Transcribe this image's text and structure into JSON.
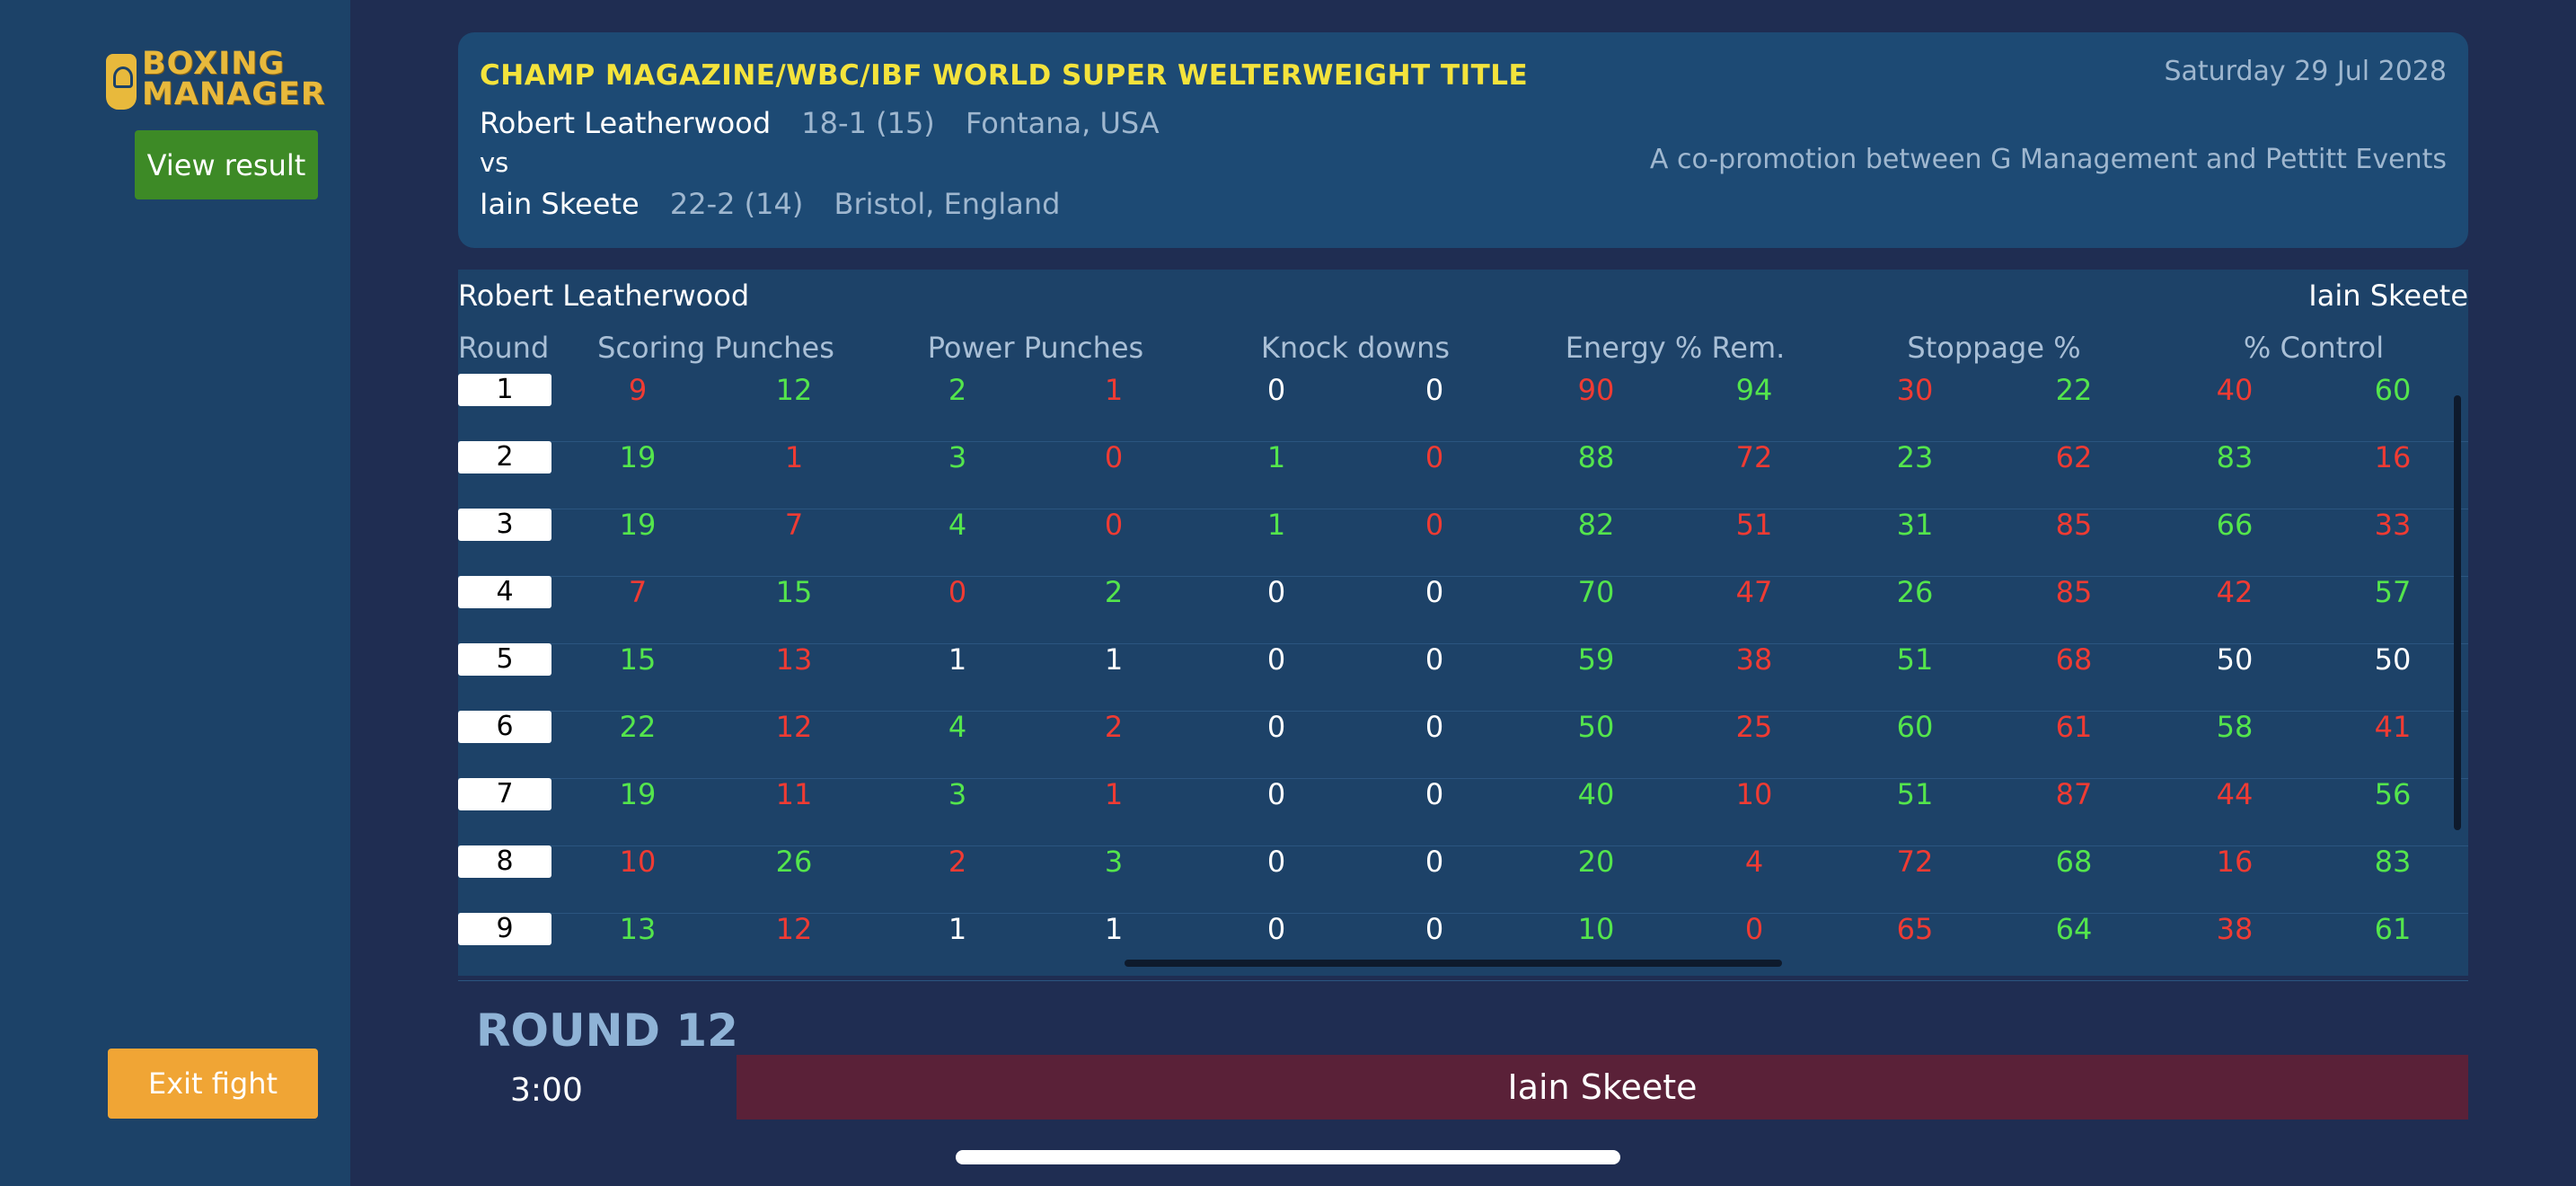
{
  "sidebar": {
    "logo_line1": "BOXING",
    "logo_line2": "MANAGER",
    "view_result_label": "View result",
    "exit_fight_label": "Exit fight"
  },
  "header": {
    "title": "CHAMP MAGAZINE/WBC/IBF WORLD SUPER WELTERWEIGHT TITLE",
    "fighter1": {
      "name": "Robert Leatherwood",
      "record": "18-1 (15)",
      "location": "Fontana, USA"
    },
    "vs": "vs",
    "fighter2": {
      "name": "Iain Skeete",
      "record": "22-2 (14)",
      "location": "Bristol, England"
    },
    "date": "Saturday 29 Jul 2028",
    "copromotion": "A co-promotion between G Management and Pettitt Events"
  },
  "table": {
    "left_name": "Robert Leatherwood",
    "right_name": "Iain Skeete",
    "headers": [
      "Round",
      "Scoring Punches",
      "Power Punches",
      "Knock downs",
      "Energy % Rem.",
      "Stoppage %",
      "% Control"
    ],
    "rows": [
      {
        "round": "1",
        "values": [
          "9",
          "12",
          "2",
          "1",
          "0",
          "0",
          "90",
          "94",
          "30",
          "22",
          "40",
          "60"
        ],
        "colors": [
          "r",
          "g",
          "g",
          "r",
          "w",
          "w",
          "r",
          "g",
          "r",
          "g",
          "r",
          "g"
        ]
      },
      {
        "round": "2",
        "values": [
          "19",
          "1",
          "3",
          "0",
          "1",
          "0",
          "88",
          "72",
          "23",
          "62",
          "83",
          "16"
        ],
        "colors": [
          "g",
          "r",
          "g",
          "r",
          "g",
          "r",
          "g",
          "r",
          "g",
          "r",
          "g",
          "r"
        ]
      },
      {
        "round": "3",
        "values": [
          "19",
          "7",
          "4",
          "0",
          "1",
          "0",
          "82",
          "51",
          "31",
          "85",
          "66",
          "33"
        ],
        "colors": [
          "g",
          "r",
          "g",
          "r",
          "g",
          "r",
          "g",
          "r",
          "g",
          "r",
          "g",
          "r"
        ]
      },
      {
        "round": "4",
        "values": [
          "7",
          "15",
          "0",
          "2",
          "0",
          "0",
          "70",
          "47",
          "26",
          "85",
          "42",
          "57"
        ],
        "colors": [
          "r",
          "g",
          "r",
          "g",
          "w",
          "w",
          "g",
          "r",
          "g",
          "r",
          "r",
          "g"
        ]
      },
      {
        "round": "5",
        "values": [
          "15",
          "13",
          "1",
          "1",
          "0",
          "0",
          "59",
          "38",
          "51",
          "68",
          "50",
          "50"
        ],
        "colors": [
          "g",
          "r",
          "w",
          "w",
          "w",
          "w",
          "g",
          "r",
          "g",
          "r",
          "w",
          "w"
        ]
      },
      {
        "round": "6",
        "values": [
          "22",
          "12",
          "4",
          "2",
          "0",
          "0",
          "50",
          "25",
          "60",
          "61",
          "58",
          "41"
        ],
        "colors": [
          "g",
          "r",
          "g",
          "r",
          "w",
          "w",
          "g",
          "r",
          "g",
          "r",
          "g",
          "r"
        ]
      },
      {
        "round": "7",
        "values": [
          "19",
          "11",
          "3",
          "1",
          "0",
          "0",
          "40",
          "10",
          "51",
          "87",
          "44",
          "56"
        ],
        "colors": [
          "g",
          "r",
          "g",
          "r",
          "w",
          "w",
          "g",
          "r",
          "g",
          "r",
          "r",
          "g"
        ]
      },
      {
        "round": "8",
        "values": [
          "10",
          "26",
          "2",
          "3",
          "0",
          "0",
          "20",
          "4",
          "72",
          "68",
          "16",
          "83"
        ],
        "colors": [
          "r",
          "g",
          "r",
          "g",
          "w",
          "w",
          "g",
          "r",
          "r",
          "g",
          "r",
          "g"
        ]
      },
      {
        "round": "9",
        "values": [
          "13",
          "12",
          "1",
          "1",
          "0",
          "0",
          "10",
          "0",
          "65",
          "64",
          "38",
          "61"
        ],
        "colors": [
          "g",
          "r",
          "w",
          "w",
          "w",
          "w",
          "g",
          "r",
          "r",
          "g",
          "r",
          "g"
        ]
      }
    ]
  },
  "footer": {
    "round_label": "ROUND 12",
    "clock": "3:00",
    "winner": "Iain Skeete"
  },
  "colors": {
    "green": "#54e54c",
    "red": "#ef3b33",
    "white": "#ffffff"
  }
}
